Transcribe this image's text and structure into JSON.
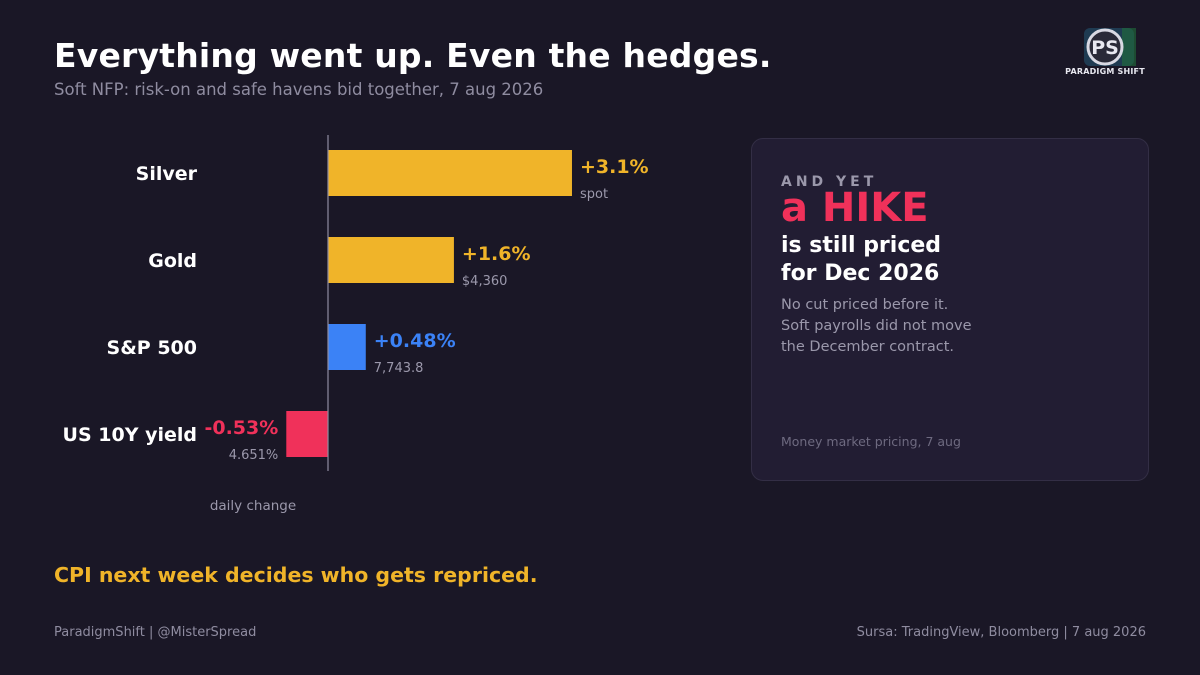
{
  "header": {
    "title": "Everything went up. Even the hedges.",
    "subtitle": "Soft NFP: risk-on and safe havens bid together, 7 aug 2026"
  },
  "logo": {
    "text": "PARADIGM SHIFT",
    "icon": "ps-monogram-icon"
  },
  "chart_data": {
    "type": "bar",
    "orientation": "horizontal",
    "categories": [
      "Silver",
      "Gold",
      "S&P 500",
      "US 10Y yield"
    ],
    "values": [
      3.1,
      1.6,
      0.48,
      -0.53
    ],
    "value_labels": [
      "+3.1%",
      "+1.6%",
      "+0.48%",
      "-0.53%"
    ],
    "sub_labels": [
      "spot",
      "$4,360",
      "7,743.8",
      "4.651%"
    ],
    "colors": [
      "#f0b429",
      "#f0b429",
      "#3b82f6",
      "#f0315a"
    ],
    "xlabel": "daily change",
    "grid": false
  },
  "card": {
    "kicker": "AND YET",
    "headline": "a HIKE",
    "line1": "is still priced",
    "line2": "for Dec 2026",
    "body1": "No cut priced before it.",
    "body2": "Soft payrolls did not move",
    "body3": "the December contract.",
    "footnote": "Money market pricing, 7 aug"
  },
  "callout": "CPI next week decides who gets repriced.",
  "footer": {
    "left": "ParadigmShift  |  @MisterSpread",
    "right": "Sursa: TradingView, Bloomberg  |  7 aug 2026"
  }
}
